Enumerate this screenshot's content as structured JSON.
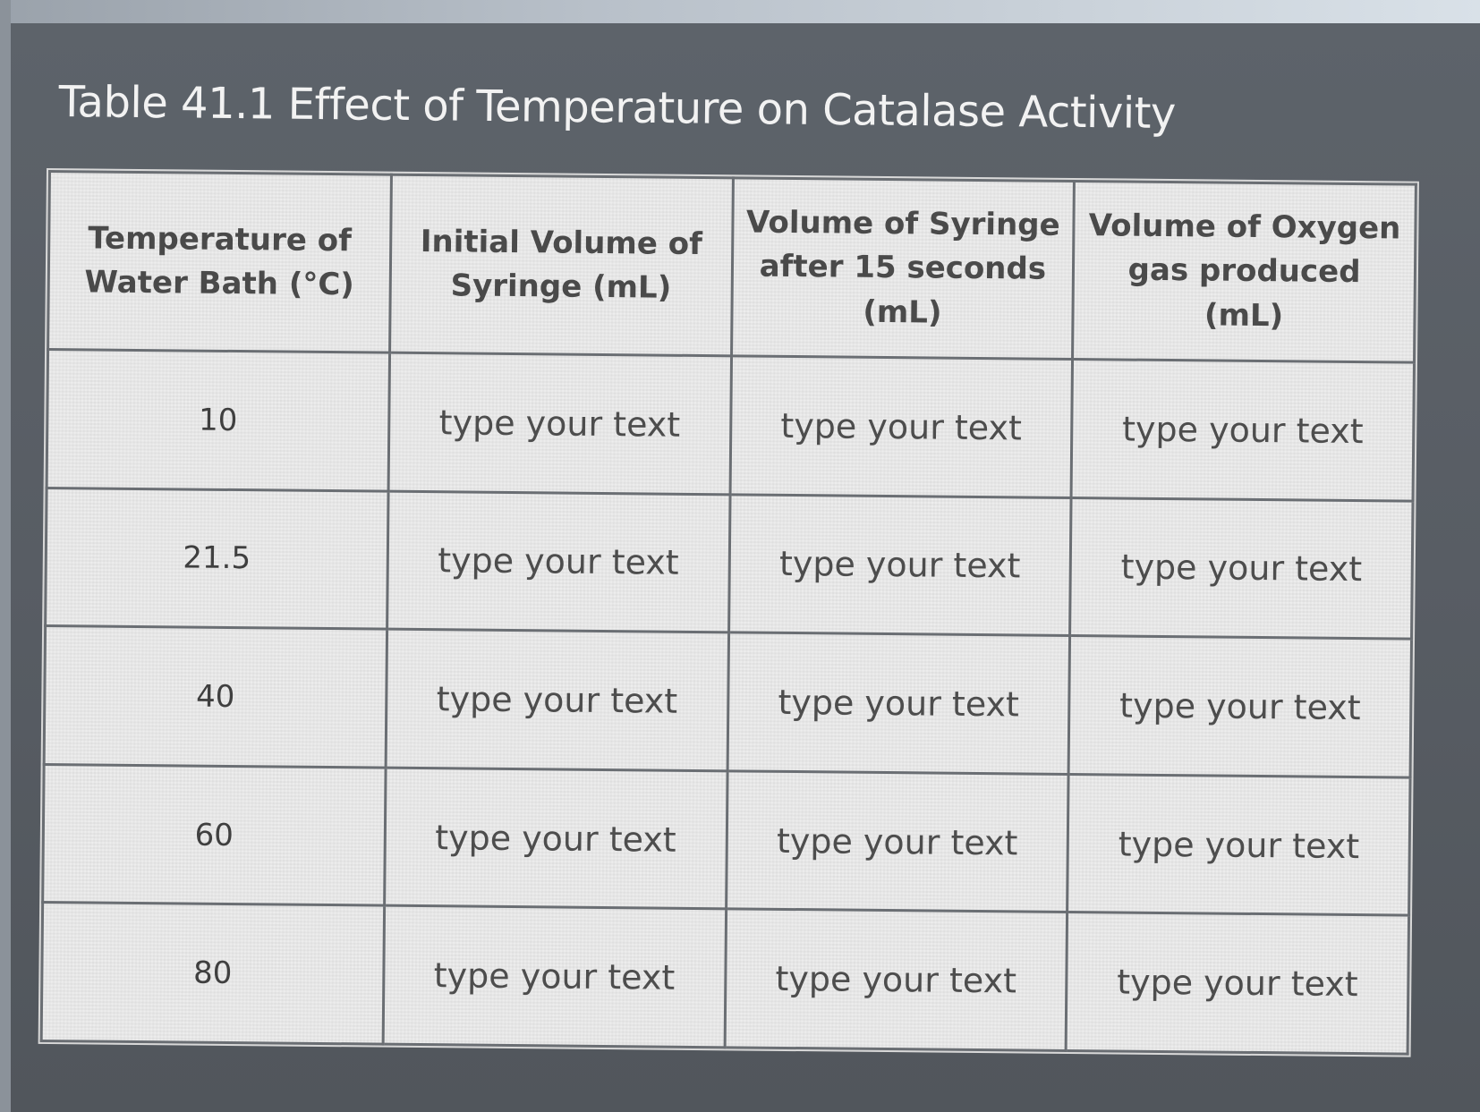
{
  "title": "Table 41.1 Effect of Temperature on Catalase Activity",
  "table": {
    "headers": [
      "Temperature of Water Bath (°C)",
      "Initial Volume of Syringe (mL)",
      "Volume of Syringe after 15 seconds (mL)",
      "Volume of Oxygen gas produced (mL)"
    ],
    "rows": [
      {
        "temperature": "10",
        "initial_volume": "type your text",
        "volume_after_15s": "type your text",
        "oxygen_produced": "type your text"
      },
      {
        "temperature": "21.5",
        "initial_volume": "type your text",
        "volume_after_15s": "type your text",
        "oxygen_produced": "type your text"
      },
      {
        "temperature": "40",
        "initial_volume": "type your text",
        "volume_after_15s": "type your text",
        "oxygen_produced": "type your text"
      },
      {
        "temperature": "60",
        "initial_volume": "type your text",
        "volume_after_15s": "type your text",
        "oxygen_produced": "type your text"
      },
      {
        "temperature": "80",
        "initial_volume": "type your text",
        "volume_after_15s": "type your text",
        "oxygen_produced": "type your text"
      }
    ]
  }
}
